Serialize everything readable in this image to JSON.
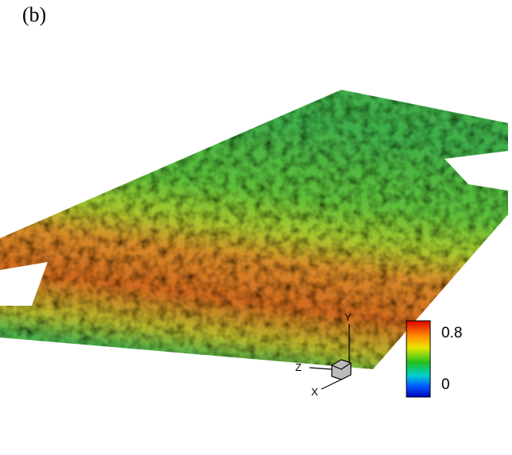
{
  "panel_label": "(b)",
  "axes": {
    "x": "X",
    "y": "Y",
    "z": "Z"
  },
  "colorbar": {
    "ticks": [
      0.8,
      0
    ]
  }
}
